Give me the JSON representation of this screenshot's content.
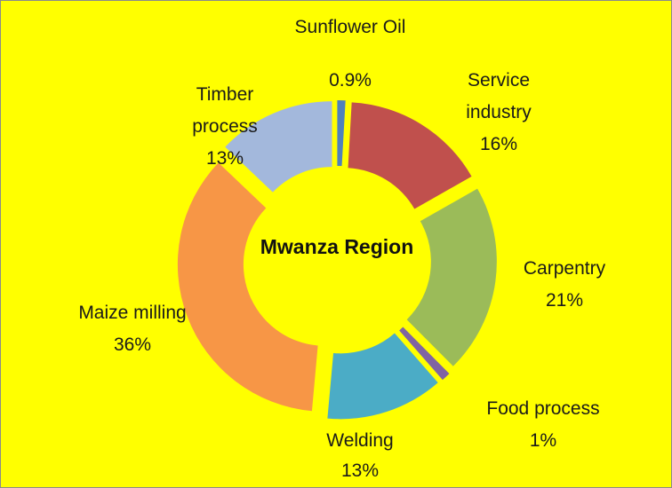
{
  "chart_data": {
    "type": "donut",
    "title": "Mwanza Region",
    "categories": [
      "Sunflower Oil",
      "Service industry",
      "Carpentry",
      "Food process",
      "Welding",
      "Maize milling",
      "Timber process"
    ],
    "values": [
      0.9,
      16,
      21,
      1,
      13,
      36,
      13
    ],
    "value_labels": [
      "0.9%",
      "16%",
      "21%",
      "1%",
      "13%",
      "36%",
      "13%"
    ],
    "colors": [
      "#4f81bd",
      "#c0504d",
      "#9bbb59",
      "#8064a2",
      "#4bacc6",
      "#f79646",
      "#a3b8dc"
    ]
  }
}
